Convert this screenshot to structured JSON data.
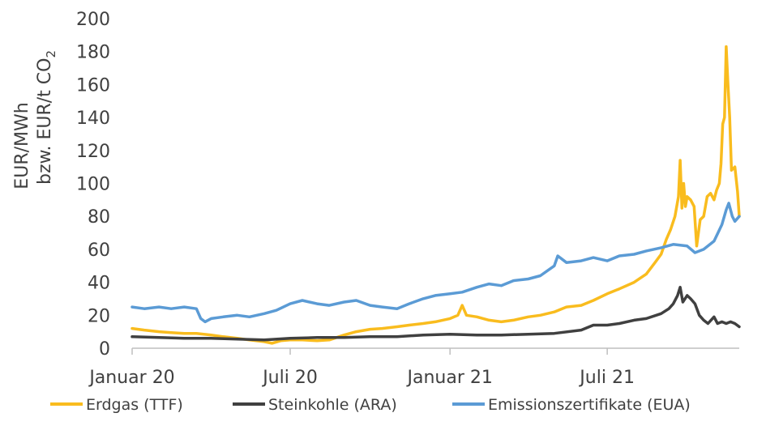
{
  "chart_data": {
    "type": "line",
    "title": "",
    "ylabel_line1": "EUR/MWh",
    "ylabel_line2": "bzw. EUR/t CO",
    "ylabel_sub": "2",
    "xlabel": "",
    "ylim": [
      0,
      200
    ],
    "yticks": [
      0,
      20,
      40,
      60,
      80,
      100,
      120,
      140,
      160,
      180,
      200
    ],
    "xlim": [
      "2020-01-01",
      "2021-11-30"
    ],
    "xticks": [
      {
        "label": "Januar 20",
        "date": "2020-01-01"
      },
      {
        "label": "Juli 20",
        "date": "2020-07-01"
      },
      {
        "label": "Januar 21",
        "date": "2021-01-01"
      },
      {
        "label": "Juli 21",
        "date": "2021-07-01"
      }
    ],
    "grid": false,
    "legend_position": "bottom",
    "series": [
      {
        "name": "Erdgas (TTF)",
        "color": "#F9BC1E",
        "points": [
          [
            "2020-01-01",
            12
          ],
          [
            "2020-01-15",
            11
          ],
          [
            "2020-02-01",
            10
          ],
          [
            "2020-02-15",
            9.5
          ],
          [
            "2020-03-01",
            9
          ],
          [
            "2020-03-15",
            9
          ],
          [
            "2020-04-01",
            8
          ],
          [
            "2020-04-15",
            7
          ],
          [
            "2020-05-01",
            6
          ],
          [
            "2020-05-15",
            5
          ],
          [
            "2020-06-01",
            4
          ],
          [
            "2020-06-10",
            3
          ],
          [
            "2020-06-20",
            4.5
          ],
          [
            "2020-07-01",
            5
          ],
          [
            "2020-07-15",
            5
          ],
          [
            "2020-08-01",
            4.5
          ],
          [
            "2020-08-15",
            5
          ],
          [
            "2020-09-01",
            8
          ],
          [
            "2020-09-15",
            10
          ],
          [
            "2020-10-01",
            11.5
          ],
          [
            "2020-10-15",
            12
          ],
          [
            "2020-11-01",
            13
          ],
          [
            "2020-11-15",
            14
          ],
          [
            "2020-12-01",
            15
          ],
          [
            "2020-12-15",
            16
          ],
          [
            "2021-01-01",
            18
          ],
          [
            "2021-01-10",
            20
          ],
          [
            "2021-01-15",
            26
          ],
          [
            "2021-01-20",
            20
          ],
          [
            "2021-02-01",
            19
          ],
          [
            "2021-02-15",
            17
          ],
          [
            "2021-03-01",
            16
          ],
          [
            "2021-03-15",
            17
          ],
          [
            "2021-04-01",
            19
          ],
          [
            "2021-04-15",
            20
          ],
          [
            "2021-05-01",
            22
          ],
          [
            "2021-05-15",
            25
          ],
          [
            "2021-06-01",
            26
          ],
          [
            "2021-06-15",
            29
          ],
          [
            "2021-07-01",
            33
          ],
          [
            "2021-07-15",
            36
          ],
          [
            "2021-08-01",
            40
          ],
          [
            "2021-08-15",
            45
          ],
          [
            "2021-08-25",
            52
          ],
          [
            "2021-09-01",
            57
          ],
          [
            "2021-09-07",
            66
          ],
          [
            "2021-09-12",
            72
          ],
          [
            "2021-09-17",
            80
          ],
          [
            "2021-09-21",
            92
          ],
          [
            "2021-09-23",
            114
          ],
          [
            "2021-09-25",
            85
          ],
          [
            "2021-09-27",
            100
          ],
          [
            "2021-09-29",
            86
          ],
          [
            "2021-10-01",
            92
          ],
          [
            "2021-10-05",
            90
          ],
          [
            "2021-10-09",
            86
          ],
          [
            "2021-10-12",
            62
          ],
          [
            "2021-10-16",
            78
          ],
          [
            "2021-10-20",
            80
          ],
          [
            "2021-10-24",
            92
          ],
          [
            "2021-10-28",
            94
          ],
          [
            "2021-11-01",
            90
          ],
          [
            "2021-11-04",
            96
          ],
          [
            "2021-11-07",
            100
          ],
          [
            "2021-11-09",
            112
          ],
          [
            "2021-11-11",
            136
          ],
          [
            "2021-11-13",
            140
          ],
          [
            "2021-11-15",
            183
          ],
          [
            "2021-11-17",
            160
          ],
          [
            "2021-11-19",
            140
          ],
          [
            "2021-11-21",
            108
          ],
          [
            "2021-11-25",
            110
          ],
          [
            "2021-11-28",
            95
          ],
          [
            "2021-11-30",
            80
          ]
        ]
      },
      {
        "name": "Steinkohle (ARA)",
        "color": "#404040",
        "points": [
          [
            "2020-01-01",
            7
          ],
          [
            "2020-02-01",
            6.5
          ],
          [
            "2020-03-01",
            6
          ],
          [
            "2020-04-01",
            6
          ],
          [
            "2020-05-01",
            5.5
          ],
          [
            "2020-06-01",
            5
          ],
          [
            "2020-07-01",
            6
          ],
          [
            "2020-08-01",
            6.5
          ],
          [
            "2020-09-01",
            6.5
          ],
          [
            "2020-10-01",
            7
          ],
          [
            "2020-11-01",
            7
          ],
          [
            "2020-12-01",
            8
          ],
          [
            "2021-01-01",
            8.5
          ],
          [
            "2021-02-01",
            8
          ],
          [
            "2021-03-01",
            8
          ],
          [
            "2021-04-01",
            8.5
          ],
          [
            "2021-05-01",
            9
          ],
          [
            "2021-06-01",
            11
          ],
          [
            "2021-06-15",
            14
          ],
          [
            "2021-07-01",
            14
          ],
          [
            "2021-07-15",
            15
          ],
          [
            "2021-08-01",
            17
          ],
          [
            "2021-08-15",
            18
          ],
          [
            "2021-09-01",
            21
          ],
          [
            "2021-09-10",
            24
          ],
          [
            "2021-09-15",
            27
          ],
          [
            "2021-09-20",
            32
          ],
          [
            "2021-09-23",
            37
          ],
          [
            "2021-09-26",
            28
          ],
          [
            "2021-10-01",
            32
          ],
          [
            "2021-10-05",
            30
          ],
          [
            "2021-10-10",
            27
          ],
          [
            "2021-10-15",
            20
          ],
          [
            "2021-10-20",
            17
          ],
          [
            "2021-10-25",
            15
          ],
          [
            "2021-11-01",
            19
          ],
          [
            "2021-11-05",
            15
          ],
          [
            "2021-11-10",
            16
          ],
          [
            "2021-11-15",
            15
          ],
          [
            "2021-11-20",
            16
          ],
          [
            "2021-11-25",
            15
          ],
          [
            "2021-11-30",
            13
          ]
        ]
      },
      {
        "name": "Emissionszertifikate (EUA)",
        "color": "#5B9BD5",
        "points": [
          [
            "2020-01-01",
            25
          ],
          [
            "2020-01-15",
            24
          ],
          [
            "2020-02-01",
            25
          ],
          [
            "2020-02-15",
            24
          ],
          [
            "2020-03-01",
            25
          ],
          [
            "2020-03-15",
            24
          ],
          [
            "2020-03-20",
            18
          ],
          [
            "2020-03-25",
            16
          ],
          [
            "2020-04-01",
            18
          ],
          [
            "2020-04-15",
            19
          ],
          [
            "2020-05-01",
            20
          ],
          [
            "2020-05-15",
            19
          ],
          [
            "2020-06-01",
            21
          ],
          [
            "2020-06-15",
            23
          ],
          [
            "2020-07-01",
            27
          ],
          [
            "2020-07-15",
            29
          ],
          [
            "2020-08-01",
            27
          ],
          [
            "2020-08-15",
            26
          ],
          [
            "2020-09-01",
            28
          ],
          [
            "2020-09-15",
            29
          ],
          [
            "2020-10-01",
            26
          ],
          [
            "2020-10-15",
            25
          ],
          [
            "2020-11-01",
            24
          ],
          [
            "2020-11-15",
            27
          ],
          [
            "2020-12-01",
            30
          ],
          [
            "2020-12-15",
            32
          ],
          [
            "2021-01-01",
            33
          ],
          [
            "2021-01-15",
            34
          ],
          [
            "2021-02-01",
            37
          ],
          [
            "2021-02-15",
            39
          ],
          [
            "2021-03-01",
            38
          ],
          [
            "2021-03-15",
            41
          ],
          [
            "2021-04-01",
            42
          ],
          [
            "2021-04-15",
            44
          ],
          [
            "2021-05-01",
            50
          ],
          [
            "2021-05-05",
            56
          ],
          [
            "2021-05-15",
            52
          ],
          [
            "2021-06-01",
            53
          ],
          [
            "2021-06-15",
            55
          ],
          [
            "2021-07-01",
            53
          ],
          [
            "2021-07-15",
            56
          ],
          [
            "2021-08-01",
            57
          ],
          [
            "2021-08-15",
            59
          ],
          [
            "2021-09-01",
            61
          ],
          [
            "2021-09-15",
            63
          ],
          [
            "2021-10-01",
            62
          ],
          [
            "2021-10-10",
            58
          ],
          [
            "2021-10-20",
            60
          ],
          [
            "2021-11-01",
            65
          ],
          [
            "2021-11-10",
            75
          ],
          [
            "2021-11-15",
            84
          ],
          [
            "2021-11-18",
            88
          ],
          [
            "2021-11-22",
            80
          ],
          [
            "2021-11-25",
            77
          ],
          [
            "2021-11-30",
            80
          ]
        ]
      }
    ]
  }
}
